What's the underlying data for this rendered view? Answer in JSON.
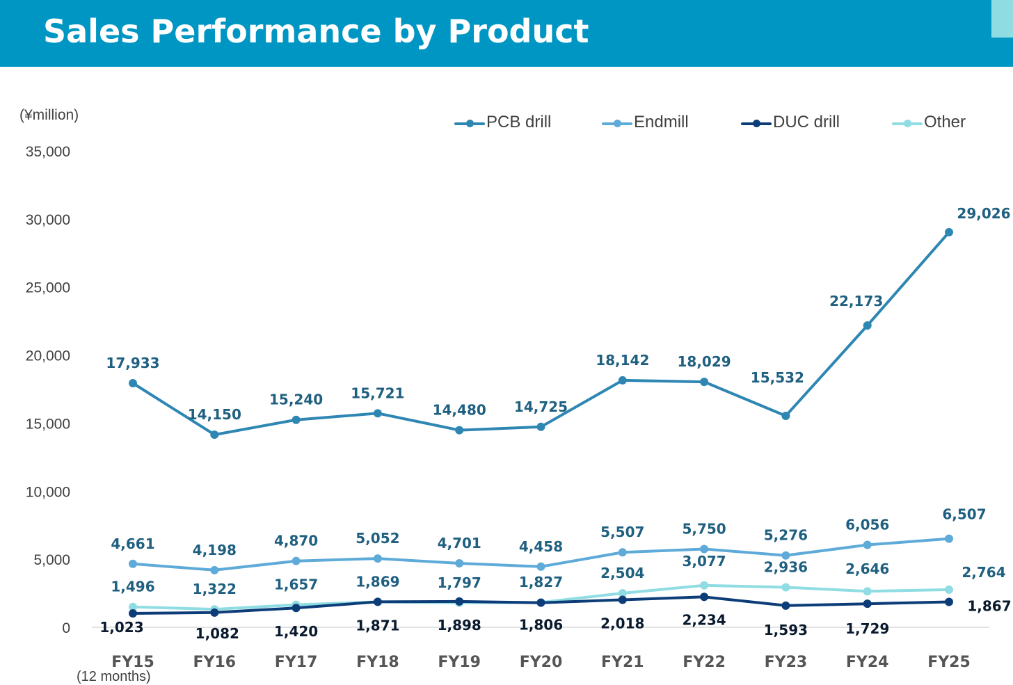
{
  "header": {
    "title": "Sales Performance by Product",
    "background_color": "#0096c3",
    "accent_color": "#8fdde3"
  },
  "unit_label": "(¥million)",
  "footnote": "(12 months)",
  "legend": [
    {
      "label": "PCB drill",
      "color": "#2e86b3"
    },
    {
      "label": "Endmill",
      "color": "#5eaad8"
    },
    {
      "label": "DUC drill",
      "color": "#0d3d78"
    },
    {
      "label": "Other",
      "color": "#8fdde3"
    }
  ],
  "chart_data": {
    "type": "line",
    "title": "Sales Performance by Product",
    "ylabel": "(¥million)",
    "xlabel": "",
    "ylim": [
      0,
      35000
    ],
    "yticks": [
      0,
      5000,
      10000,
      15000,
      20000,
      25000,
      30000,
      35000
    ],
    "ytick_labels": [
      "0",
      "5,000",
      "10,000",
      "15,000",
      "20,000",
      "25,000",
      "30,000",
      "35,000"
    ],
    "categories": [
      "FY15",
      "FY16",
      "FY17",
      "FY18",
      "FY19",
      "FY20",
      "FY21",
      "FY22",
      "FY23",
      "FY24",
      "FY25"
    ],
    "grid": false,
    "legend_position": "top-right",
    "series": [
      {
        "name": "PCB drill",
        "color": "#2e86b3",
        "label_color": "#1f5f80",
        "values": [
          17933,
          14150,
          15240,
          15721,
          14480,
          14725,
          18142,
          18029,
          15532,
          22173,
          29026
        ],
        "labels": [
          "17,933",
          "14,150",
          "15,240",
          "15,721",
          "14,480",
          "14,725",
          "18,142",
          "18,029",
          "15,532",
          "22,173",
          "29,026"
        ]
      },
      {
        "name": "Endmill",
        "color": "#5eaad8",
        "label_color": "#1f5f80",
        "values": [
          4661,
          4198,
          4870,
          5052,
          4701,
          4458,
          5507,
          5750,
          5276,
          6056,
          6507
        ],
        "labels": [
          "4,661",
          "4,198",
          "4,870",
          "5,052",
          "4,701",
          "4,458",
          "5,507",
          "5,750",
          "5,276",
          "6,056",
          "6,507"
        ]
      },
      {
        "name": "DUC drill",
        "color": "#0d3d78",
        "label_color": "#0a1a2e",
        "values": [
          1023,
          1082,
          1420,
          1871,
          1898,
          1806,
          2018,
          2234,
          1593,
          1729,
          1867
        ],
        "labels": [
          "1,023",
          "1,082",
          "1,420",
          "1,871",
          "1,898",
          "1,806",
          "2,018",
          "2,234",
          "1,593",
          "1,729",
          "1,867"
        ]
      },
      {
        "name": "Other",
        "color": "#8fdde3",
        "label_color": "#1f5f80",
        "values": [
          1496,
          1322,
          1657,
          1869,
          1797,
          1827,
          2504,
          3077,
          2936,
          2646,
          2764
        ],
        "labels": [
          "1,496",
          "1,322",
          "1,657",
          "1,869",
          "1,797",
          "1,827",
          "2,504",
          "3,077",
          "2,936",
          "2,646",
          "2,764"
        ]
      }
    ]
  }
}
